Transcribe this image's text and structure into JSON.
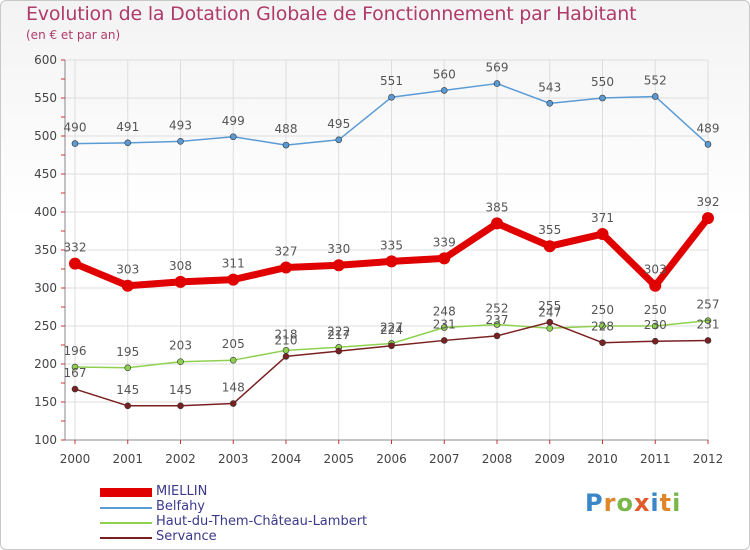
{
  "title": "Evolution de la Dotation Globale de Fonctionnement par Habitant",
  "subtitle": "(en € et par an)",
  "brand": {
    "letters": [
      "P",
      "r",
      "o",
      "x",
      "i",
      "t",
      "i"
    ],
    "colors": [
      "#3a86c8",
      "#e0862a",
      "#7ab648",
      "#e05a2a",
      "#3a86c8",
      "#e0862a",
      "#7ab648"
    ]
  },
  "colors": {
    "title": "#b03a6a",
    "legend_text": "#3a3a8c",
    "axis": "#888888",
    "grid": "#dddddd"
  },
  "chart_data": {
    "type": "line",
    "title": "Evolution de la Dotation Globale de Fonctionnement par Habitant",
    "subtitle": "(en € et par an)",
    "xlabel": "",
    "ylabel": "",
    "ylim": [
      100,
      600
    ],
    "yticks": [
      100,
      150,
      200,
      250,
      300,
      350,
      400,
      450,
      500,
      550,
      600
    ],
    "categories": [
      "2000",
      "2001",
      "2002",
      "2003",
      "2004",
      "2005",
      "2006",
      "2007",
      "2008",
      "2009",
      "2010",
      "2011",
      "2012"
    ],
    "series": [
      {
        "name": "MIELLIN",
        "color": "#e00000",
        "values": [
          332,
          303,
          308,
          311,
          327,
          330,
          335,
          339,
          385,
          355,
          371,
          303,
          392
        ]
      },
      {
        "name": "Belfahy",
        "color": "#5b9bd5",
        "values": [
          490,
          491,
          493,
          499,
          488,
          495,
          551,
          560,
          569,
          543,
          550,
          552,
          489
        ]
      },
      {
        "name": "Haut-du-Them-Château-Lambert",
        "color": "#8fd14f",
        "values": [
          196,
          195,
          203,
          205,
          218,
          222,
          227,
          248,
          252,
          247,
          250,
          250,
          257
        ]
      },
      {
        "name": "Servance",
        "color": "#7b2020",
        "values": [
          167,
          145,
          145,
          148,
          210,
          217,
          224,
          231,
          237,
          255,
          228,
          230,
          231
        ]
      }
    ],
    "legend_position": "bottom-left"
  }
}
